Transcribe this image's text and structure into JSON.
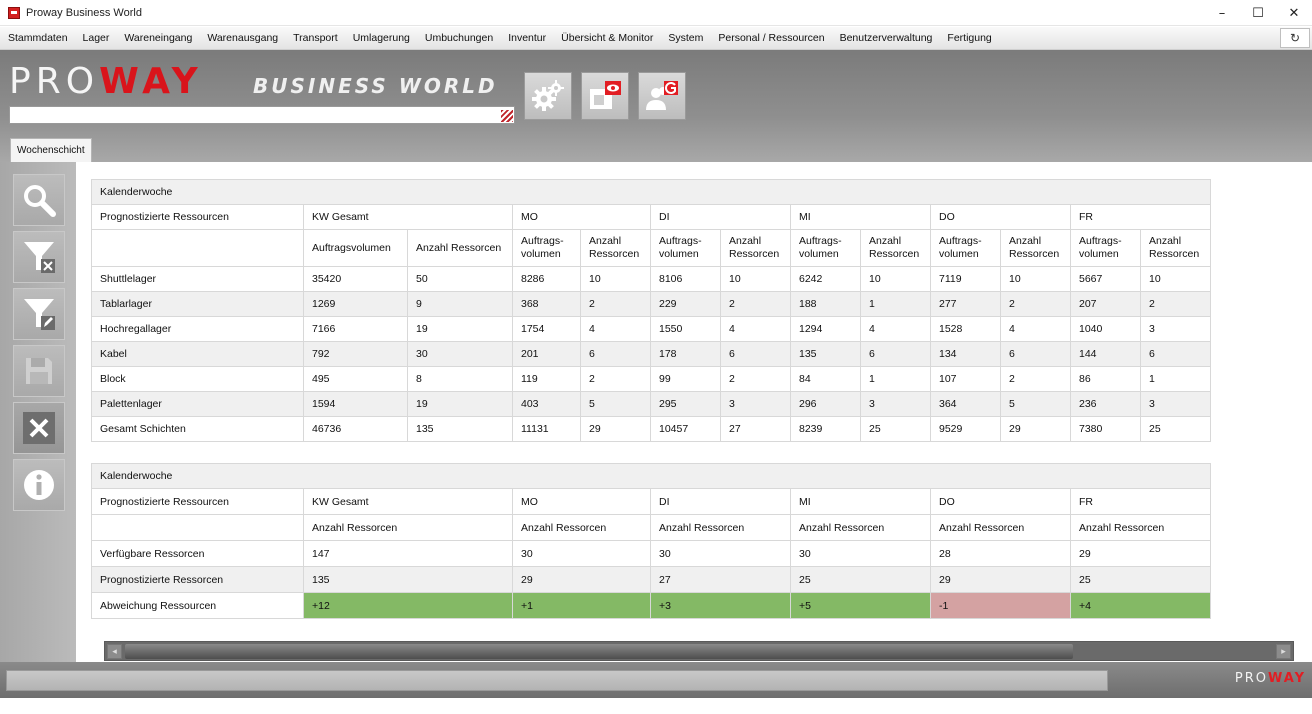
{
  "window": {
    "title": "Proway Business World",
    "minimize": "–",
    "maximize": "☐",
    "close": "✕"
  },
  "menu": {
    "items": [
      "Stammdaten",
      "Lager",
      "Wareneingang",
      "Warenausgang",
      "Transport",
      "Umlagerung",
      "Umbuchungen",
      "Inventur",
      "Übersicht & Monitor",
      "System",
      "Personal / Ressourcen",
      "Benutzerverwaltung",
      "Fertigung"
    ],
    "settings_icon": "↻"
  },
  "header": {
    "logo_pro": "PRO",
    "logo_way": "WAY",
    "logo_subtitle": "BUSINESS WORLD",
    "buttons": [
      "settings-icon",
      "camera-view-icon",
      "user-group-icon"
    ]
  },
  "tab": {
    "label": "Wochenschicht"
  },
  "sidebar": {
    "buttons": [
      "search-icon",
      "filter-clear-icon",
      "filter-edit-icon",
      "save-icon",
      "close-icon",
      "info-icon"
    ]
  },
  "table1": {
    "title": "Kalenderwoche",
    "label_col": "Prognostizierte Ressourcen",
    "groups": [
      "KW Gesamt",
      "MO",
      "DI",
      "MI",
      "DO",
      "FR"
    ],
    "subheaders": [
      "Auftragsvolumen",
      "Anzahl Ressorcen",
      "Auftrags-volumen",
      "Anzahl Ressorcen",
      "Auftrags-volumen",
      "Anzahl Ressorcen",
      "Auftrags-volumen",
      "Anzahl Ressorcen",
      "Auftrags-volumen",
      "Anzahl Ressorcen",
      "Auftrags-volumen",
      "Anzahl Ressorcen"
    ],
    "rows": [
      {
        "label": "Shuttlelager",
        "values": [
          "35420",
          "50",
          "8286",
          "10",
          "8106",
          "10",
          "6242",
          "10",
          "7119",
          "10",
          "5667",
          "10"
        ]
      },
      {
        "label": "Tablarlager",
        "values": [
          "1269",
          "9",
          "368",
          "2",
          "229",
          "2",
          "188",
          "1",
          "277",
          "2",
          "207",
          "2"
        ]
      },
      {
        "label": "Hochregallager",
        "values": [
          "7166",
          "19",
          "1754",
          "4",
          "1550",
          "4",
          "1294",
          "4",
          "1528",
          "4",
          "1040",
          "3"
        ]
      },
      {
        "label": "Kabel",
        "values": [
          "792",
          "30",
          "201",
          "6",
          "178",
          "6",
          "135",
          "6",
          "134",
          "6",
          "144",
          "6"
        ]
      },
      {
        "label": "Block",
        "values": [
          "495",
          "8",
          "119",
          "2",
          "99",
          "2",
          "84",
          "1",
          "107",
          "2",
          "86",
          "1"
        ]
      },
      {
        "label": "Palettenlager",
        "values": [
          "1594",
          "19",
          "403",
          "5",
          "295",
          "3",
          "296",
          "3",
          "364",
          "5",
          "236",
          "3"
        ]
      },
      {
        "label": "Gesamt Schichten",
        "values": [
          "46736",
          "135",
          "11131",
          "29",
          "10457",
          "27",
          "8239",
          "25",
          "9529",
          "29",
          "7380",
          "25"
        ]
      }
    ]
  },
  "table2": {
    "title": "Kalenderwoche",
    "label_col": "Prognostizierte Ressourcen",
    "groups": [
      "KW Gesamt",
      "MO",
      "DI",
      "MI",
      "DO",
      "FR"
    ],
    "subheader": "Anzahl Ressorcen",
    "rows": [
      {
        "label": "Verfügbare Ressorcen",
        "values": [
          "147",
          "30",
          "30",
          "30",
          "28",
          "29"
        ]
      },
      {
        "label": "Prognostizierte Ressorcen",
        "values": [
          "135",
          "29",
          "27",
          "25",
          "29",
          "25"
        ]
      },
      {
        "label": "Abweichung Ressourcen",
        "values": [
          "+12",
          "+1",
          "+3",
          "+5",
          "-1",
          "+4"
        ],
        "status": [
          "pos",
          "pos",
          "pos",
          "pos",
          "neg",
          "pos"
        ]
      }
    ]
  },
  "colors": {
    "positive": "#84b965",
    "negative": "#d4a2a2",
    "brand_red": "#d9141b"
  },
  "statusbar": {
    "logo_pro": "PRO",
    "logo_way": "WAY"
  }
}
